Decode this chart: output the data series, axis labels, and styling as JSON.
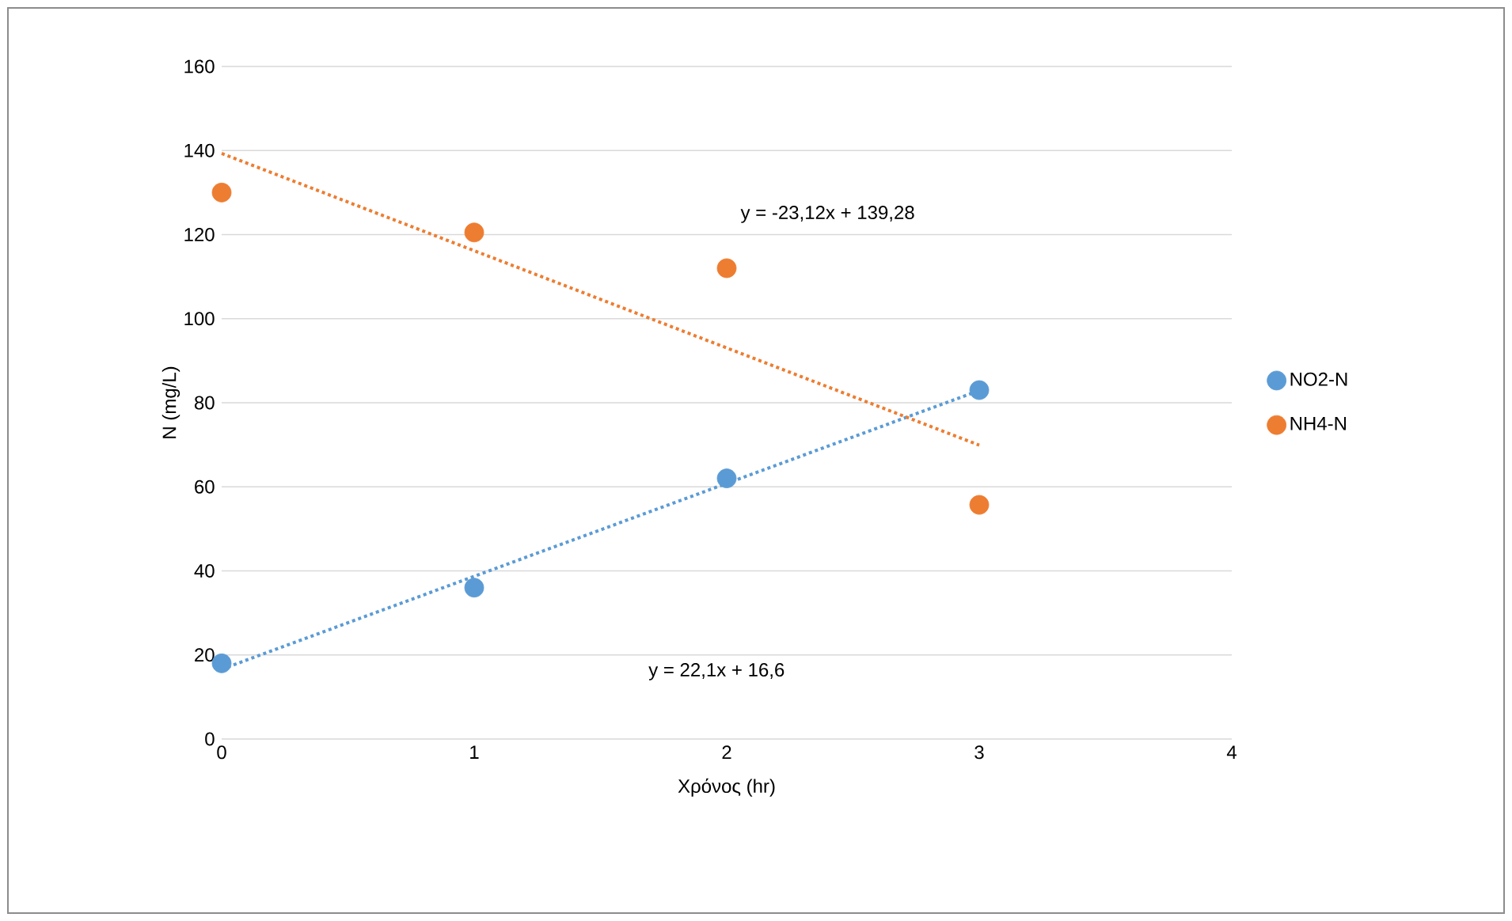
{
  "chart_data": {
    "type": "scatter",
    "xlabel": "Χρόνος (hr)",
    "ylabel": "N (mg/L)",
    "xlim": [
      0,
      4
    ],
    "ylim": [
      0,
      160
    ],
    "xticks": [
      0,
      1,
      2,
      3,
      4
    ],
    "yticks": [
      0,
      20,
      40,
      60,
      80,
      100,
      120,
      140,
      160
    ],
    "grid": "y",
    "legend": "right",
    "series": [
      {
        "name": "NO2-N",
        "marker": "circle",
        "color": "#5b9bd5",
        "x": [
          0,
          1,
          2,
          3
        ],
        "values": [
          18,
          36,
          62,
          83
        ]
      },
      {
        "name": "NH4-N",
        "marker": "circle",
        "color": "#ed7d31",
        "x": [
          0,
          1,
          2,
          3
        ],
        "values": [
          130,
          120.5,
          112,
          55.7
        ]
      },
      {
        "type": "line",
        "line_style": "dotted",
        "color": "#5b9bd5",
        "x": [
          0,
          3
        ],
        "values": [
          16.6,
          82.9
        ]
      },
      {
        "type": "line",
        "line_style": "dotted",
        "color": "#ed7d31",
        "x": [
          0,
          3
        ],
        "values": [
          139.3,
          69.9
        ]
      }
    ],
    "annotations": [
      "y = -23,12x + 139,28",
      "y = 22,1x + 16,6"
    ]
  }
}
